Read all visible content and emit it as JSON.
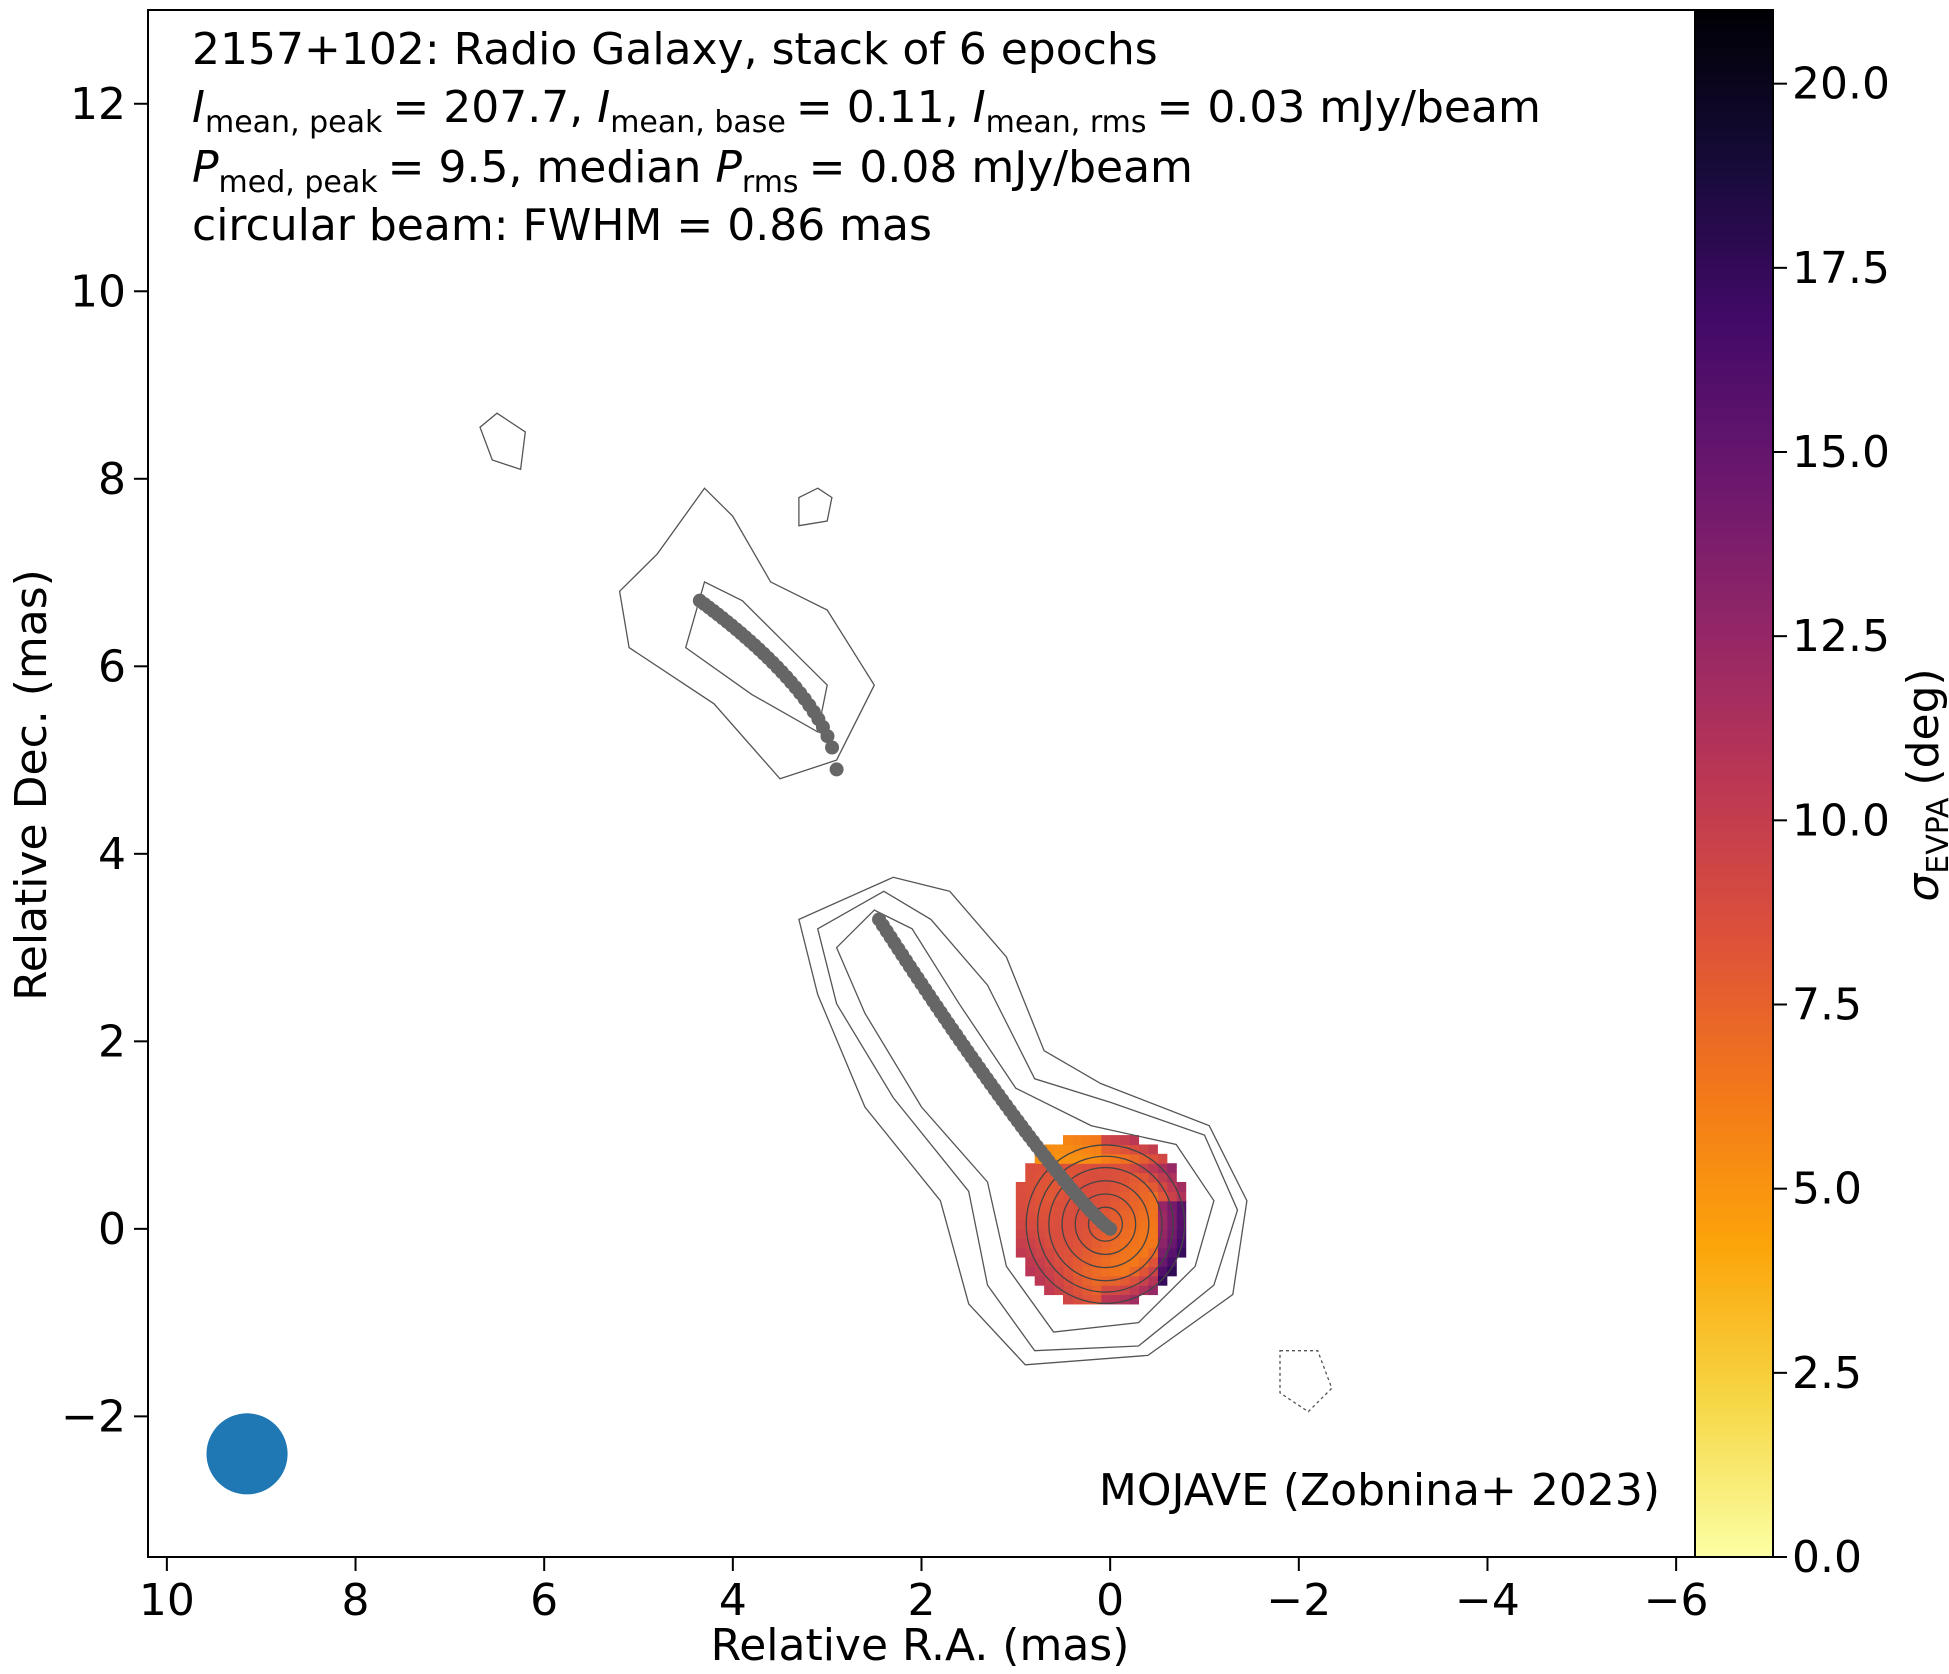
{
  "chart_data": {
    "type": "heatmap",
    "title_lines": [
      "2157+102: Radio Galaxy, stack of 6 epochs",
      "circular beam: FWHM = 0.86 mas"
    ],
    "intensity_line": {
      "peak_symbol": "I",
      "peak_sub": "mean, peak",
      "peak_value": "= 207.7,",
      "base_symbol": "I",
      "base_sub": "mean, base",
      "base_value": "= 0.11,",
      "rms_symbol": "I",
      "rms_sub": "mean, rms",
      "rms_value": "= 0.03 mJy/beam"
    },
    "polarization_line": {
      "peak_symbol": "P",
      "peak_sub": "med, peak",
      "peak_value": "= 9.5, median",
      "rms_symbol": "P",
      "rms_sub": "rms",
      "rms_value": "= 0.08 mJy/beam"
    },
    "credit": "MOJAVE (Zobnina+ 2023)",
    "xlabel": "Relative R.A. (mas)",
    "ylabel": "Relative Dec. (mas)",
    "xlim": [
      10.2,
      -6.2
    ],
    "ylim": [
      -3.5,
      13.0
    ],
    "x_ticks": [
      10,
      8,
      6,
      4,
      2,
      0,
      -2,
      -4,
      -6
    ],
    "x_tick_labels": [
      "10",
      "8",
      "6",
      "4",
      "2",
      "0",
      "−2",
      "−4",
      "−6"
    ],
    "y_ticks": [
      -2,
      0,
      2,
      4,
      6,
      8,
      10,
      12
    ],
    "y_tick_labels": [
      "−2",
      "0",
      "2",
      "4",
      "6",
      "8",
      "10",
      "12"
    ],
    "colorbar": {
      "label": "σ",
      "label_sub": "EVPA",
      "label_unit": "(deg)",
      "range": [
        0,
        21
      ],
      "ticks": [
        0,
        2.5,
        5,
        7.5,
        10,
        12.5,
        15,
        17.5,
        20
      ],
      "tick_labels": [
        "0.0",
        "2.5",
        "5.0",
        "7.5",
        "10.0",
        "12.5",
        "15.0",
        "17.5",
        "20.0"
      ],
      "colormap": "inferno_r"
    },
    "ridge_line": {
      "color": "#666666",
      "inner_segment": {
        "x_range": [
          0.0,
          2.45
        ],
        "y_range": [
          0.0,
          3.3
        ]
      },
      "outer_segment": {
        "x_range": [
          2.9,
          4.35
        ],
        "y_range": [
          4.9,
          6.7
        ]
      }
    },
    "evpa_map": {
      "center": [
        0.15,
        0.05
      ],
      "radius_mas": 0.95,
      "sigma_evpa_range_deg": [
        3,
        20
      ]
    },
    "beam": {
      "center": [
        9.15,
        -2.4
      ],
      "fwhm_mas": 0.86,
      "color": "#1f77b4"
    },
    "contour_color": "#555555"
  }
}
